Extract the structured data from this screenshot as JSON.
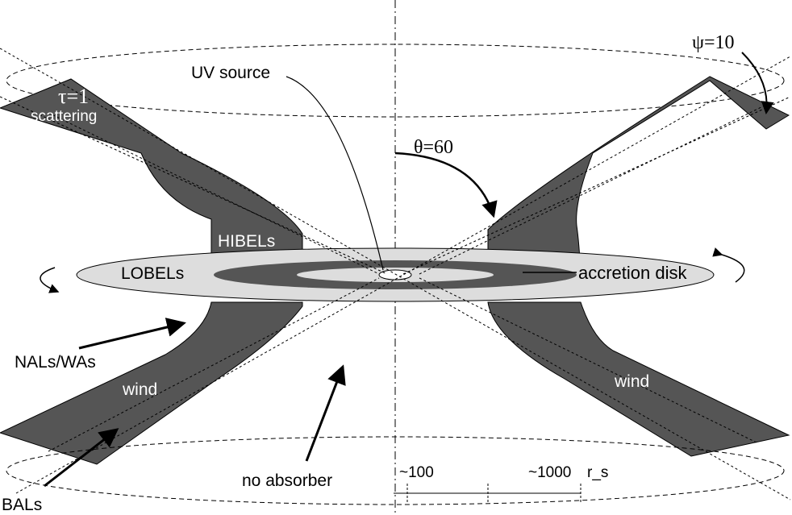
{
  "colors": {
    "wind": "#555555",
    "disk_outer": "#dddddd",
    "disk_ring": "#555555",
    "background": "#ffffff"
  },
  "labels": {
    "uv_source": "UV source",
    "psi": "ψ=10",
    "tau": "τ=1",
    "scattering": "scattering",
    "theta": "θ=60",
    "hibels": "HIBELs",
    "lobels": "LOBELs",
    "accretion_disk": "accretion disk",
    "nals_was": "NALs/WAs",
    "wind_left": "wind",
    "wind_right": "wind",
    "no_absorber": "no absorber",
    "bals": "BALs",
    "scale_100": "~100",
    "scale_1000": "~1000",
    "scale_unit": "r_s"
  }
}
